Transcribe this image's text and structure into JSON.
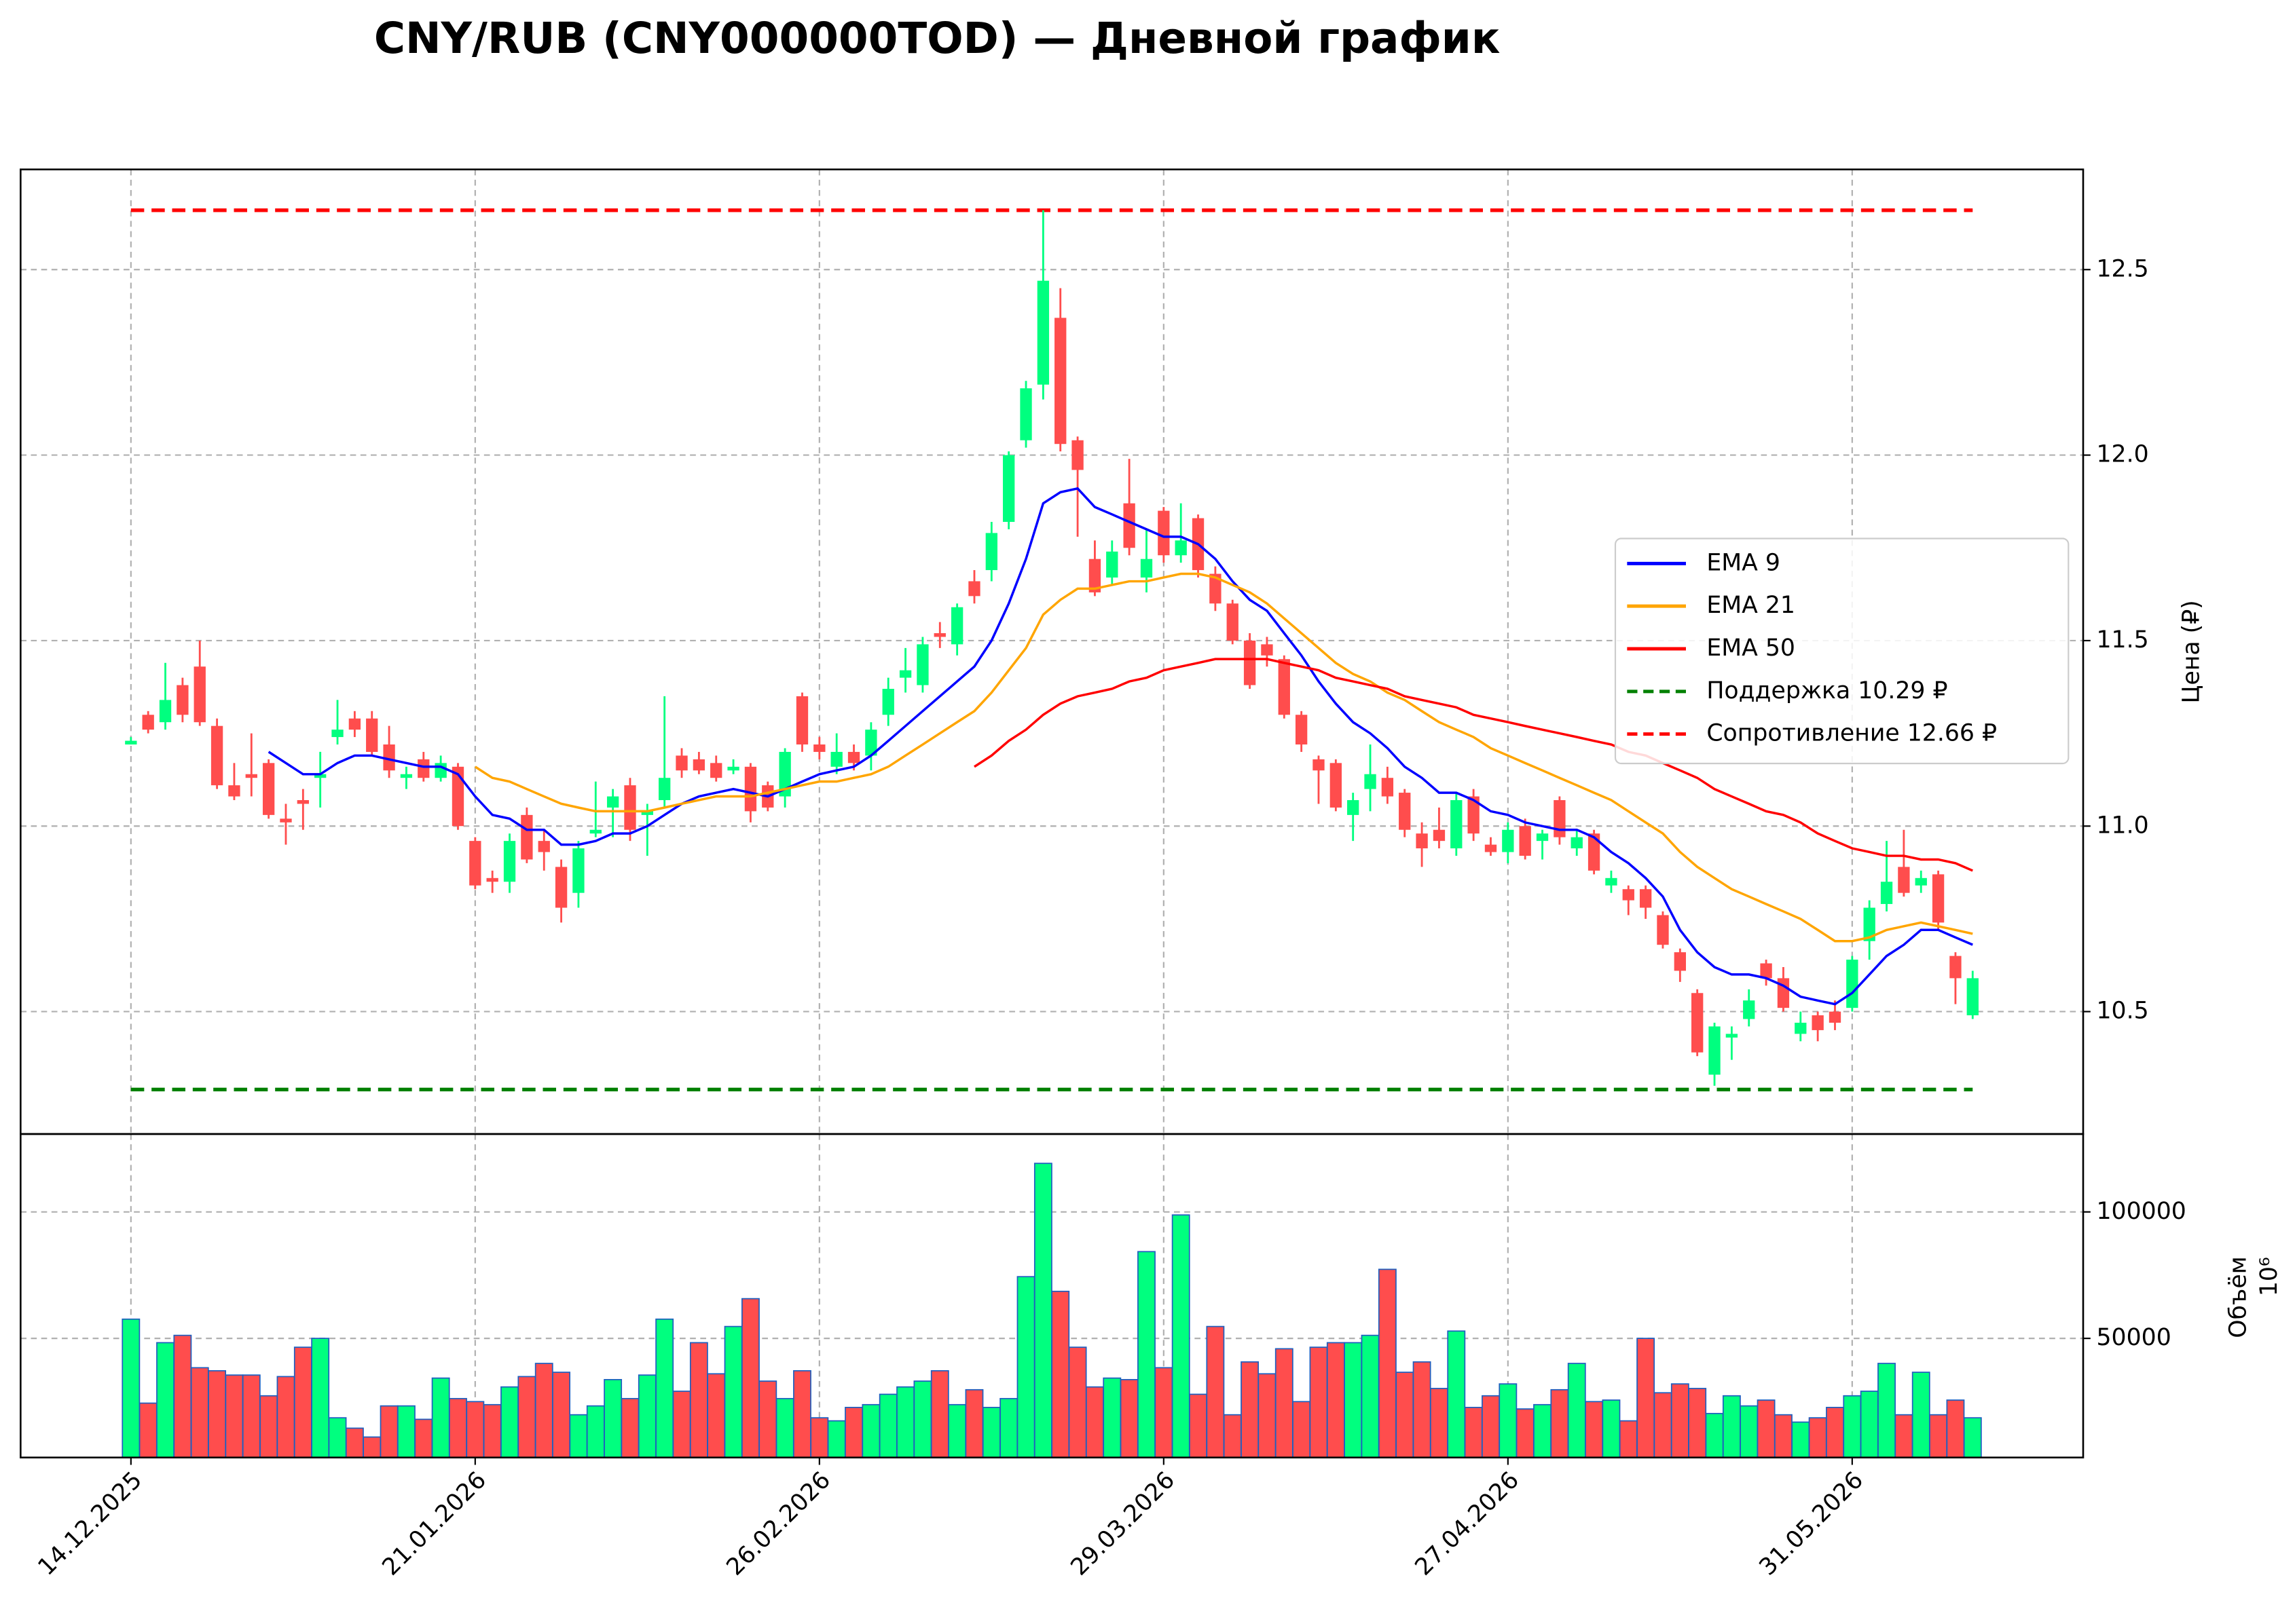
{
  "chart_data": [
    {
      "type": "candlestick",
      "title": "CNY/RUB (CNY000000TOD) — Дневной график",
      "y_label": "Цена (₽)",
      "categories": [
        "14.12.2025",
        null,
        null,
        null,
        null,
        null,
        null,
        null,
        null,
        null,
        null,
        null,
        null,
        null,
        null,
        null,
        null,
        null,
        null,
        null,
        "21.01.2026",
        null,
        null,
        null,
        null,
        null,
        null,
        null,
        null,
        null,
        null,
        null,
        null,
        null,
        null,
        null,
        null,
        null,
        null,
        null,
        "26.02.2026",
        null,
        null,
        null,
        null,
        null,
        null,
        null,
        null,
        null,
        null,
        null,
        null,
        null,
        null,
        null,
        null,
        null,
        null,
        null,
        "29.03.2026",
        null,
        null,
        null,
        null,
        null,
        null,
        null,
        null,
        null,
        null,
        null,
        null,
        null,
        null,
        null,
        null,
        null,
        null,
        null,
        "27.04.2026",
        null,
        null,
        null,
        null,
        null,
        null,
        null,
        null,
        null,
        null,
        null,
        null,
        null,
        null,
        null,
        null,
        null,
        null,
        null,
        "31.05.2026",
        null,
        null,
        null,
        null,
        null,
        null,
        null
      ],
      "open": [
        11.22,
        11.3,
        11.28,
        11.38,
        11.43,
        11.27,
        11.11,
        11.14,
        11.17,
        11.02,
        11.07,
        11.13,
        11.24,
        11.29,
        11.29,
        11.22,
        11.13,
        11.18,
        11.13,
        11.16,
        10.96,
        10.86,
        10.85,
        11.03,
        10.96,
        10.89,
        10.82,
        10.98,
        11.05,
        11.11,
        11.03,
        11.07,
        11.19,
        11.18,
        11.17,
        11.15,
        11.16,
        11.11,
        11.08,
        11.35,
        11.22,
        11.16,
        11.2,
        11.19,
        11.3,
        11.4,
        11.38,
        11.52,
        11.49,
        11.66,
        11.69,
        11.82,
        12.04,
        12.19,
        12.37,
        12.04,
        11.72,
        11.67,
        11.87,
        11.67,
        11.85,
        11.73,
        11.83,
        11.68,
        11.6,
        11.5,
        11.49,
        11.45,
        11.3,
        11.18,
        11.17,
        11.03,
        11.1,
        11.13,
        11.09,
        10.98,
        10.99,
        10.94,
        11.08,
        10.95,
        10.93,
        11.0,
        10.96,
        11.07,
        10.94,
        10.98,
        10.84,
        10.83,
        10.83,
        10.76,
        10.66,
        10.55,
        10.33,
        10.43,
        10.48,
        10.63,
        10.59,
        10.44,
        10.49,
        10.5,
        10.51,
        10.69,
        10.79,
        10.89,
        10.84,
        10.87,
        10.65,
        10.49
      ],
      "high": [
        11.24,
        11.31,
        11.44,
        11.4,
        11.5,
        11.29,
        11.17,
        11.25,
        11.18,
        11.06,
        11.1,
        11.2,
        11.34,
        11.31,
        11.31,
        11.27,
        11.16,
        11.2,
        11.19,
        11.17,
        10.97,
        10.88,
        10.98,
        11.05,
        10.99,
        10.91,
        10.96,
        11.12,
        11.1,
        11.13,
        11.06,
        11.35,
        11.21,
        11.2,
        11.19,
        11.18,
        11.17,
        11.12,
        11.21,
        11.36,
        11.24,
        11.25,
        11.22,
        11.28,
        11.4,
        11.48,
        11.51,
        11.55,
        11.6,
        11.69,
        11.82,
        12.01,
        12.2,
        12.66,
        12.45,
        12.05,
        11.77,
        11.77,
        11.99,
        11.8,
        11.86,
        11.87,
        11.84,
        11.7,
        11.61,
        11.52,
        11.51,
        11.46,
        11.31,
        11.19,
        11.18,
        11.09,
        11.22,
        11.16,
        11.1,
        11.01,
        11.05,
        11.09,
        11.1,
        10.97,
        11.01,
        11.02,
        10.99,
        11.08,
        10.99,
        10.99,
        10.88,
        10.84,
        10.84,
        10.77,
        10.67,
        10.56,
        10.47,
        10.46,
        10.56,
        10.64,
        10.62,
        10.5,
        10.5,
        10.53,
        10.65,
        10.8,
        10.96,
        10.99,
        10.88,
        10.88,
        10.66,
        10.61
      ],
      "low": [
        11.22,
        11.25,
        11.26,
        11.28,
        11.27,
        11.1,
        11.07,
        11.08,
        11.02,
        10.95,
        10.99,
        11.05,
        11.22,
        11.24,
        11.19,
        11.13,
        11.1,
        11.12,
        11.12,
        10.99,
        10.83,
        10.82,
        10.82,
        10.9,
        10.88,
        10.74,
        10.78,
        10.97,
        10.97,
        10.96,
        10.92,
        11.05,
        11.13,
        11.14,
        11.12,
        11.14,
        11.01,
        11.04,
        11.05,
        11.2,
        11.18,
        11.14,
        11.15,
        11.15,
        11.27,
        11.36,
        11.36,
        11.48,
        11.46,
        11.6,
        11.66,
        11.8,
        12.02,
        12.15,
        12.01,
        11.78,
        11.62,
        11.65,
        11.73,
        11.63,
        11.71,
        11.71,
        11.67,
        11.58,
        11.49,
        11.37,
        11.43,
        11.29,
        11.2,
        11.06,
        11.04,
        10.96,
        11.04,
        11.06,
        10.97,
        10.89,
        10.94,
        10.92,
        10.96,
        10.92,
        10.9,
        10.91,
        10.91,
        10.95,
        10.92,
        10.87,
        10.82,
        10.76,
        10.75,
        10.67,
        10.58,
        10.38,
        10.3,
        10.37,
        10.46,
        10.57,
        10.5,
        10.42,
        10.42,
        10.45,
        10.5,
        10.64,
        10.77,
        10.81,
        10.82,
        10.72,
        10.52,
        10.48
      ],
      "close": [
        11.23,
        11.26,
        11.34,
        11.3,
        11.28,
        11.11,
        11.08,
        11.13,
        11.03,
        11.01,
        11.06,
        11.14,
        11.26,
        11.26,
        11.2,
        11.15,
        11.14,
        11.13,
        11.17,
        11.0,
        10.84,
        10.85,
        10.96,
        10.91,
        10.93,
        10.78,
        10.94,
        10.99,
        11.08,
        10.99,
        11.04,
        11.13,
        11.15,
        11.15,
        11.13,
        11.16,
        11.04,
        11.05,
        11.2,
        11.22,
        11.2,
        11.2,
        11.17,
        11.26,
        11.37,
        11.42,
        11.49,
        11.51,
        11.59,
        11.62,
        11.79,
        12.0,
        12.18,
        12.47,
        12.03,
        11.96,
        11.63,
        11.74,
        11.75,
        11.72,
        11.73,
        11.77,
        11.69,
        11.6,
        11.5,
        11.38,
        11.46,
        11.3,
        11.22,
        11.15,
        11.05,
        11.07,
        11.14,
        11.08,
        10.99,
        10.94,
        10.96,
        11.07,
        10.98,
        10.93,
        10.99,
        10.92,
        10.98,
        10.97,
        10.97,
        10.88,
        10.86,
        10.8,
        10.78,
        10.68,
        10.61,
        10.39,
        10.46,
        10.44,
        10.53,
        10.59,
        10.51,
        10.47,
        10.45,
        10.47,
        10.64,
        10.78,
        10.85,
        10.82,
        10.86,
        10.74,
        10.59,
        10.59
      ],
      "up_color": "#00ff7f",
      "down_color": "#ff4d4d",
      "series": [
        {
          "name": "EMA 9",
          "color": "#0000ff",
          "values": [
            null,
            null,
            null,
            null,
            null,
            null,
            null,
            null,
            11.2,
            11.17,
            11.14,
            11.14,
            11.17,
            11.19,
            11.19,
            11.18,
            11.17,
            11.16,
            11.16,
            11.14,
            11.08,
            11.03,
            11.02,
            10.99,
            10.99,
            10.95,
            10.95,
            10.96,
            10.98,
            10.98,
            11.0,
            11.03,
            11.06,
            11.08,
            11.09,
            11.1,
            11.09,
            11.08,
            11.1,
            11.12,
            11.14,
            11.15,
            11.16,
            11.19,
            11.23,
            11.27,
            11.31,
            11.35,
            11.39,
            11.43,
            11.5,
            11.6,
            11.72,
            11.87,
            11.9,
            11.91,
            11.86,
            11.84,
            11.82,
            11.8,
            11.78,
            11.78,
            11.76,
            11.72,
            11.66,
            11.61,
            11.58,
            11.52,
            11.46,
            11.39,
            11.33,
            11.28,
            11.25,
            11.21,
            11.16,
            11.13,
            11.09,
            11.09,
            11.07,
            11.04,
            11.03,
            11.01,
            11.0,
            10.99,
            10.99,
            10.97,
            10.93,
            10.9,
            10.86,
            10.81,
            10.72,
            10.66,
            10.62,
            10.6,
            10.6,
            10.59,
            10.57,
            10.54,
            10.53,
            10.52,
            10.55,
            10.6,
            10.65,
            10.68,
            10.72,
            10.72,
            10.7,
            10.68
          ]
        },
        {
          "name": "EMA 21",
          "color": "#ffa500",
          "values": [
            null,
            null,
            null,
            null,
            null,
            null,
            null,
            null,
            null,
            null,
            null,
            null,
            null,
            null,
            null,
            null,
            null,
            null,
            null,
            null,
            11.16,
            11.13,
            11.12,
            11.1,
            11.08,
            11.06,
            11.05,
            11.04,
            11.04,
            11.04,
            11.04,
            11.05,
            11.06,
            11.07,
            11.08,
            11.08,
            11.08,
            11.09,
            11.1,
            11.11,
            11.12,
            11.12,
            11.13,
            11.14,
            11.16,
            11.19,
            11.22,
            11.25,
            11.28,
            11.31,
            11.36,
            11.42,
            11.48,
            11.57,
            11.61,
            11.64,
            11.64,
            11.65,
            11.66,
            11.66,
            11.67,
            11.68,
            11.68,
            11.67,
            11.65,
            11.63,
            11.6,
            11.56,
            11.52,
            11.48,
            11.44,
            11.41,
            11.39,
            11.36,
            11.34,
            11.31,
            11.28,
            11.26,
            11.24,
            11.21,
            11.19,
            11.17,
            11.15,
            11.13,
            11.11,
            11.09,
            11.07,
            11.04,
            11.01,
            10.98,
            10.93,
            10.89,
            10.86,
            10.83,
            10.81,
            10.79,
            10.77,
            10.75,
            10.72,
            10.69,
            10.69,
            10.7,
            10.72,
            10.73,
            10.74,
            10.73,
            10.72,
            10.71
          ]
        },
        {
          "name": "EMA 50",
          "color": "#ff0000",
          "values": [
            null,
            null,
            null,
            null,
            null,
            null,
            null,
            null,
            null,
            null,
            null,
            null,
            null,
            null,
            null,
            null,
            null,
            null,
            null,
            null,
            null,
            null,
            null,
            null,
            null,
            null,
            null,
            null,
            null,
            null,
            null,
            null,
            null,
            null,
            null,
            null,
            null,
            null,
            null,
            null,
            null,
            null,
            null,
            null,
            null,
            null,
            null,
            null,
            null,
            11.16,
            11.19,
            11.23,
            11.26,
            11.3,
            11.33,
            11.35,
            11.36,
            11.37,
            11.39,
            11.4,
            11.42,
            11.43,
            11.44,
            11.45,
            11.45,
            11.45,
            11.45,
            11.44,
            11.43,
            11.42,
            11.4,
            11.39,
            11.38,
            11.37,
            11.35,
            11.34,
            11.33,
            11.32,
            11.3,
            11.29,
            11.28,
            11.27,
            11.26,
            11.25,
            11.24,
            11.23,
            11.22,
            11.2,
            11.19,
            11.17,
            11.15,
            11.13,
            11.1,
            11.08,
            11.06,
            11.04,
            11.03,
            11.01,
            10.98,
            10.96,
            10.94,
            10.93,
            10.92,
            10.92,
            10.91,
            10.91,
            10.9,
            10.88
          ]
        }
      ],
      "hlines": [
        {
          "name": "Поддержка 10.29 ₽",
          "value": 10.29,
          "color": "#008000"
        },
        {
          "name": "Сопротивление 12.66 ₽",
          "value": 12.66,
          "color": "#ff0000"
        }
      ],
      "ylim": [
        10.17,
        12.77
      ],
      "yticks": [
        10.5,
        {
          "value": 11,
          "label": "11.0"
        },
        11.5,
        {
          "value": 12,
          "label": "12.0"
        },
        12.5
      ],
      "grid": true,
      "legend": "center right"
    },
    {
      "type": "bar",
      "y_label": "Объём",
      "y_offset_label": "10⁶",
      "values": [
        57600,
        24400,
        48300,
        51200,
        38400,
        37200,
        35500,
        35500,
        27300,
        34900,
        46500,
        50000,
        18600,
        14500,
        11000,
        23300,
        23300,
        18000,
        34300,
        26200,
        25000,
        23800,
        30800,
        34900,
        40100,
        36600,
        19800,
        23300,
        33700,
        26200,
        35500,
        57600,
        29100,
        48300,
        36000,
        54700,
        65700,
        33100,
        26200,
        37200,
        18600,
        17400,
        22700,
        23800,
        27900,
        30800,
        33100,
        37200,
        23800,
        29700,
        22700,
        26200,
        74400,
        119200,
        68600,
        46500,
        30800,
        34300,
        33700,
        84300,
        38400,
        98800,
        27900,
        54700,
        19800,
        40700,
        36000,
        45900,
        25000,
        46500,
        48300,
        48300,
        51200,
        77300,
        36600,
        40700,
        30200,
        52900,
        22700,
        27300,
        32000,
        22100,
        23800,
        29700,
        40100,
        25000,
        25600,
        17400,
        50000,
        28500,
        32000,
        30200,
        20300,
        27300,
        23300,
        25600,
        19800,
        16900,
        18600,
        22700,
        27300,
        29100,
        40100,
        19800,
        36600,
        19800,
        25600,
        18600
      ],
      "up_color": "#00ff7f",
      "down_color": "#ff4d4d",
      "edge_color": "#1f5fbf",
      "ylim": [
        2900,
        130800
      ],
      "yticks": [
        50000,
        100000
      ],
      "grid": true
    }
  ]
}
